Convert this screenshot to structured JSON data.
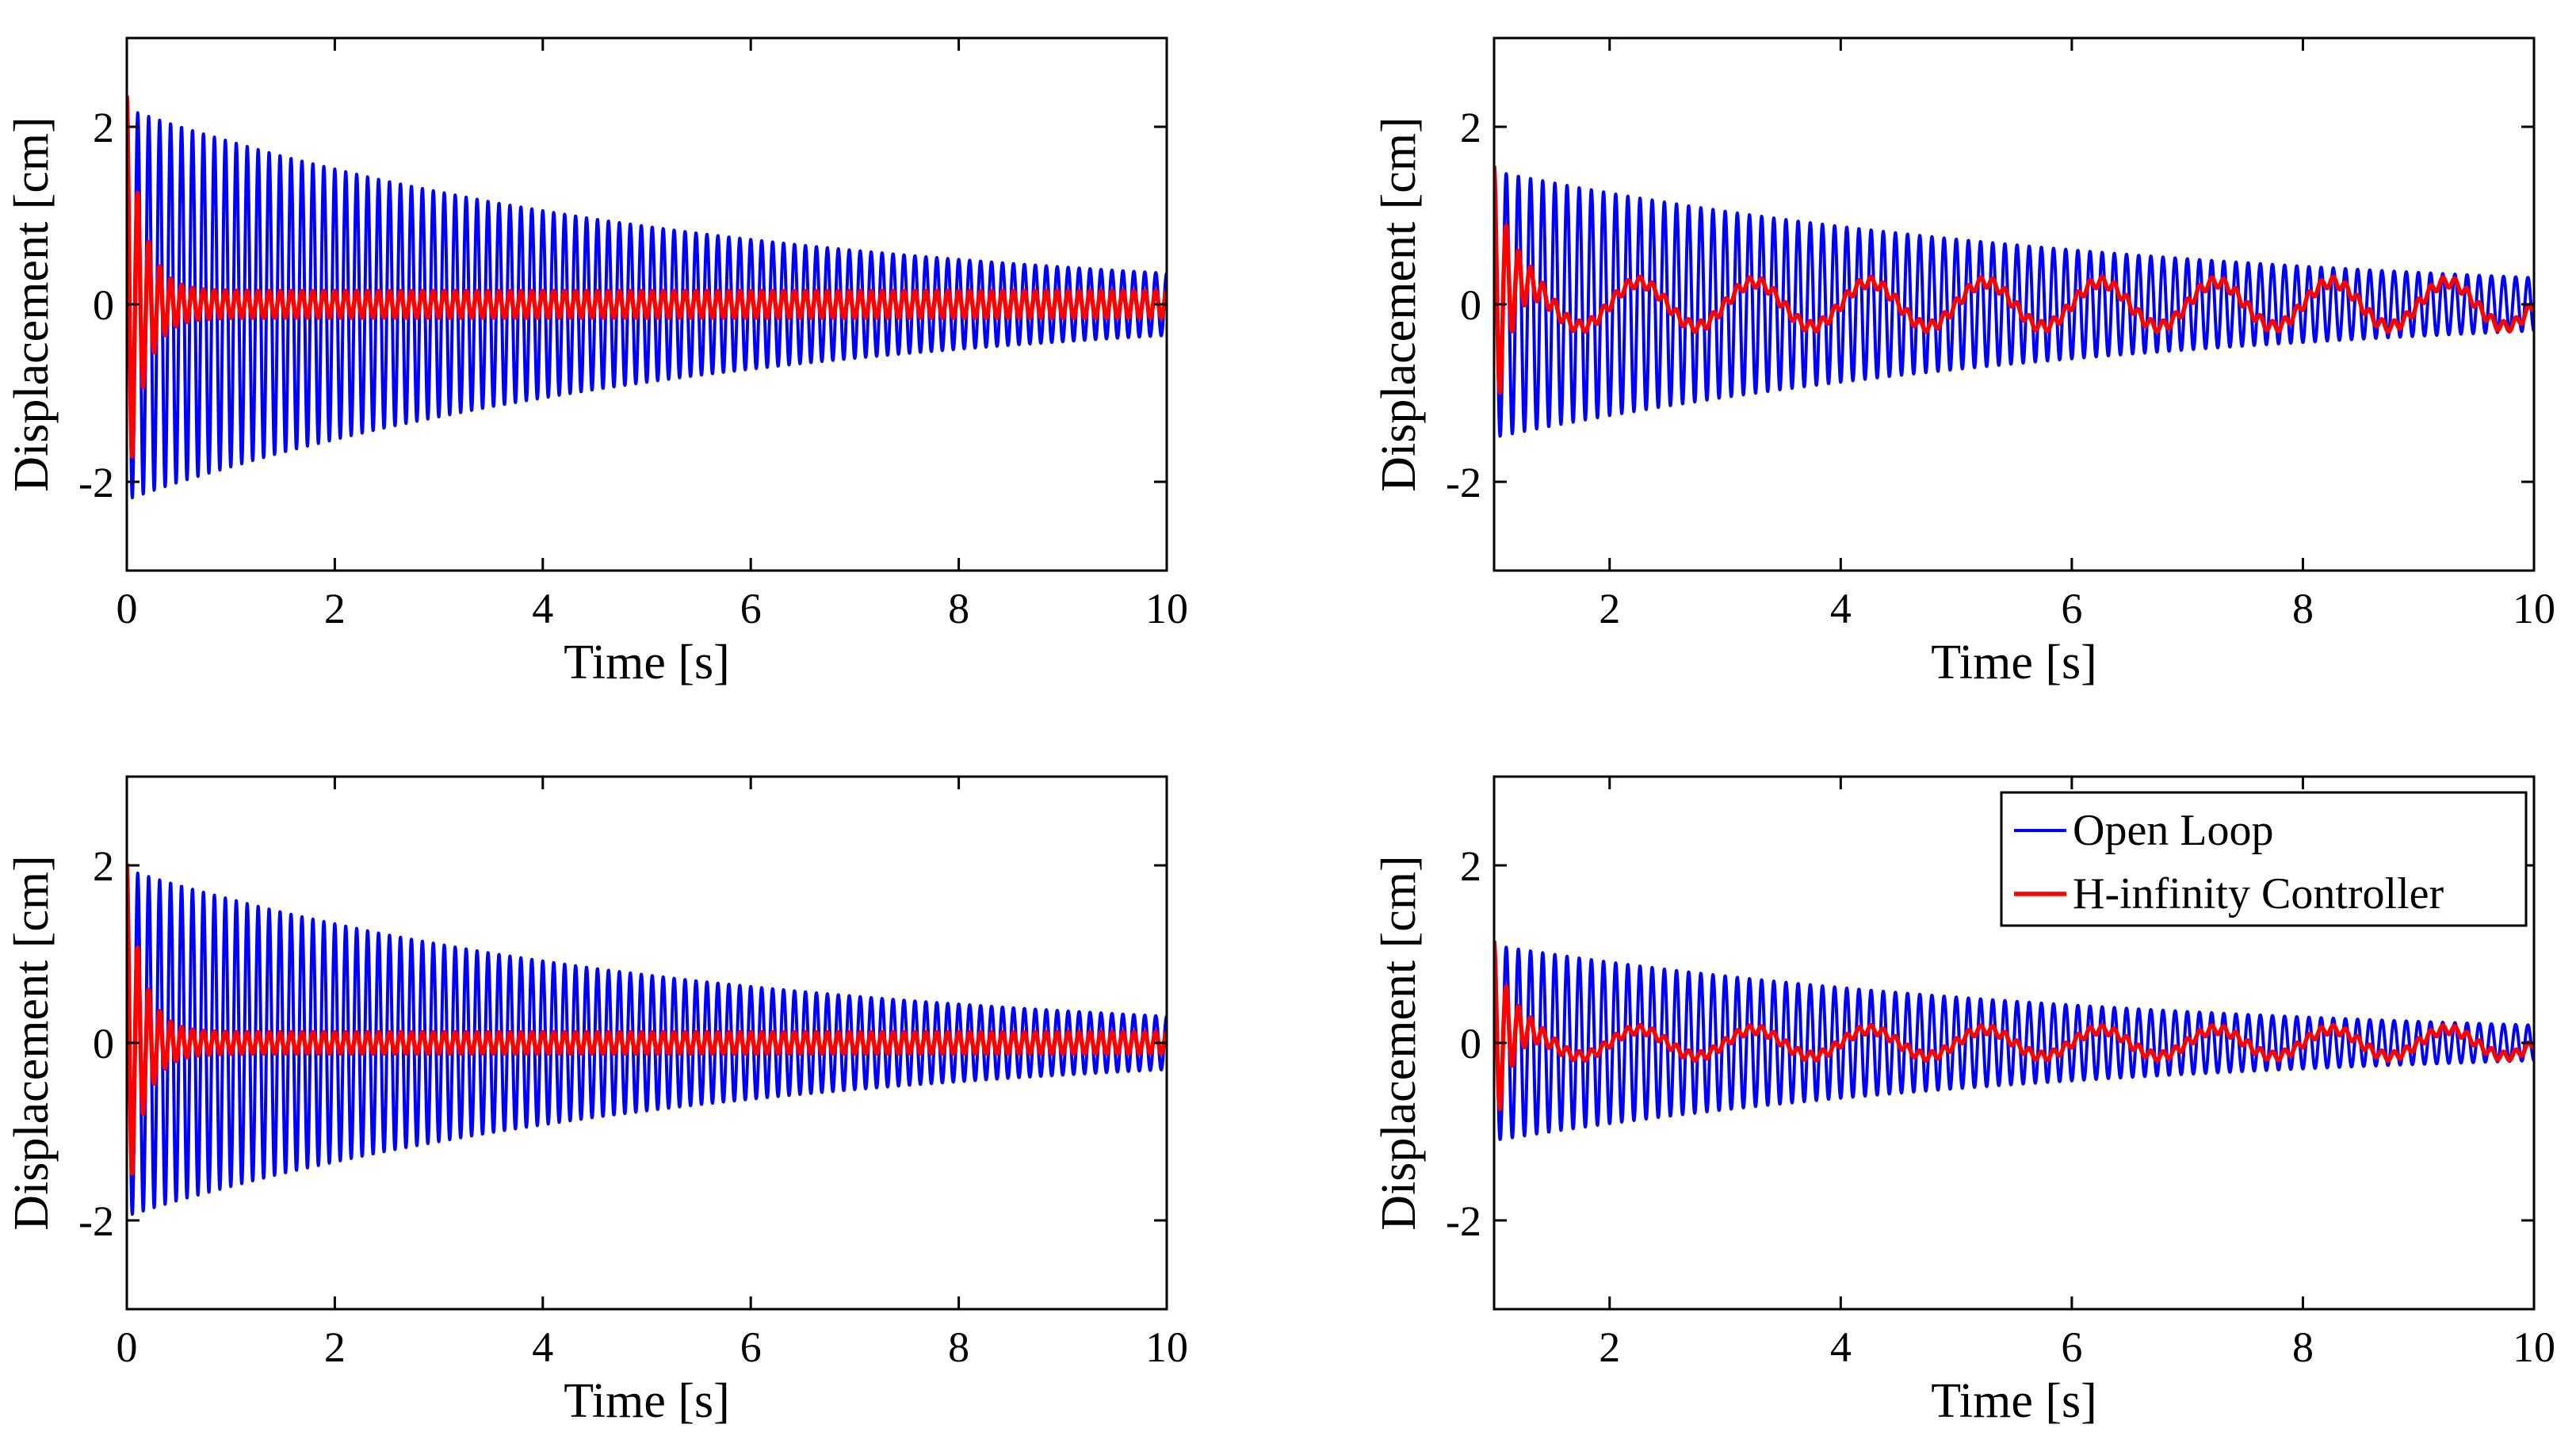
{
  "chart_data": [
    {
      "type": "line",
      "panel": "top-left",
      "xlabel": "Time [s]",
      "ylabel": "Displacement [cm]",
      "xlim": [
        0,
        10
      ],
      "ylim": [
        -3,
        3
      ],
      "xticks": [
        0,
        2,
        4,
        6,
        8,
        10
      ],
      "yticks": [
        -2,
        0,
        2
      ],
      "x_tick_labels": [
        "0",
        "2",
        "4",
        "6",
        "8",
        "10"
      ],
      "y_tick_labels": [
        "-2",
        "0",
        "2"
      ],
      "series": [
        {
          "name": "Open Loop",
          "color": "#0000ff",
          "signal": "decaying_sine",
          "frequency_hz": 9.5,
          "initial_amplitude": 2.2,
          "final_amplitude": 0.35,
          "offset_amplitude": 0,
          "offset_period_s": 1
        },
        {
          "name": "H-infinity Controller",
          "color": "#ff0000",
          "signal": "decaying_sine",
          "frequency_hz": 9.5,
          "initial_amplitude": 2.2,
          "settle_time_s": 0.7,
          "residual_amplitude": 0.15,
          "offset_amplitude": 0,
          "offset_period_s": 1
        }
      ]
    },
    {
      "type": "line",
      "panel": "top-right",
      "xlabel": "Time [s]",
      "ylabel": "Displacement [cm]",
      "xlim": [
        1,
        10
      ],
      "ylim": [
        -3,
        3
      ],
      "xticks": [
        2,
        4,
        6,
        8,
        10
      ],
      "yticks": [
        -2,
        0,
        2
      ],
      "x_tick_labels": [
        "2",
        "4",
        "6",
        "8",
        "10"
      ],
      "y_tick_labels": [
        "-2",
        "0",
        "2"
      ],
      "series": [
        {
          "name": "Open Loop",
          "color": "#0000ff",
          "signal": "decaying_sine",
          "frequency_hz": 9.5,
          "initial_amplitude": 1.5,
          "final_amplitude": 0.3,
          "offset_amplitude": 0,
          "offset_period_s": 1
        },
        {
          "name": "H-infinity Controller",
          "color": "#ff0000",
          "signal": "decaying_sine",
          "frequency_hz": 9.5,
          "initial_amplitude": 1.5,
          "settle_time_s": 0.6,
          "residual_amplitude": 0.06,
          "offset_amplitude": 0.25,
          "offset_period_s": 1
        }
      ]
    },
    {
      "type": "line",
      "panel": "bottom-left",
      "xlabel": "Time [s]",
      "ylabel": "Displacement [cm]",
      "xlim": [
        0,
        10
      ],
      "ylim": [
        -3,
        3
      ],
      "xticks": [
        0,
        2,
        4,
        6,
        8,
        10
      ],
      "yticks": [
        -2,
        0,
        2
      ],
      "x_tick_labels": [
        "0",
        "2",
        "4",
        "6",
        "8",
        "10"
      ],
      "y_tick_labels": [
        "-2",
        "0",
        "2"
      ],
      "series": [
        {
          "name": "Open Loop",
          "color": "#0000ff",
          "signal": "decaying_sine",
          "frequency_hz": 9.5,
          "initial_amplitude": 1.95,
          "final_amplitude": 0.3,
          "offset_amplitude": 0,
          "offset_period_s": 1
        },
        {
          "name": "H-infinity Controller",
          "color": "#ff0000",
          "signal": "decaying_sine",
          "frequency_hz": 9.5,
          "initial_amplitude": 1.9,
          "settle_time_s": 0.7,
          "residual_amplitude": 0.12,
          "offset_amplitude": 0,
          "offset_period_s": 1
        }
      ]
    },
    {
      "type": "line",
      "panel": "bottom-right",
      "xlabel": "Time [s]",
      "ylabel": "Displacement [cm]",
      "xlim": [
        1,
        10
      ],
      "ylim": [
        -3,
        3
      ],
      "xticks": [
        2,
        4,
        6,
        8,
        10
      ],
      "yticks": [
        -2,
        0,
        2
      ],
      "x_tick_labels": [
        "2",
        "4",
        "6",
        "8",
        "10"
      ],
      "y_tick_labels": [
        "-2",
        "0",
        "2"
      ],
      "legend": {
        "position": "top-right",
        "entries": [
          "Open Loop",
          "H-infinity Controller"
        ]
      },
      "series": [
        {
          "name": "Open Loop",
          "color": "#0000ff",
          "signal": "decaying_sine",
          "frequency_hz": 9.5,
          "initial_amplitude": 1.1,
          "final_amplitude": 0.2,
          "offset_amplitude": 0,
          "offset_period_s": 1
        },
        {
          "name": "H-infinity Controller",
          "color": "#ff0000",
          "signal": "decaying_sine",
          "frequency_hz": 9.5,
          "initial_amplitude": 1.1,
          "settle_time_s": 0.6,
          "residual_amplitude": 0.05,
          "offset_amplitude": 0.15,
          "offset_period_s": 1
        }
      ]
    }
  ]
}
